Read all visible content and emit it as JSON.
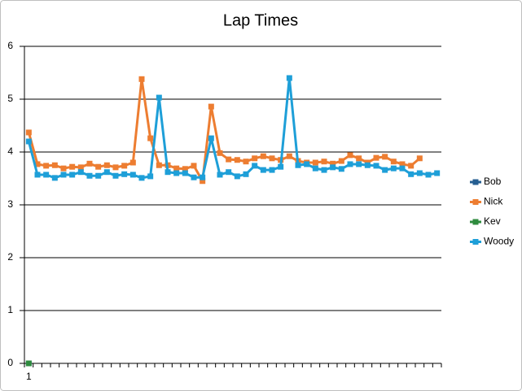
{
  "chart_data": {
    "type": "line",
    "title": "Lap Times",
    "categories": [
      "1",
      null,
      null,
      null,
      null,
      null,
      null,
      null,
      null,
      null,
      null,
      null,
      null,
      null,
      null,
      null,
      null,
      null,
      null,
      null,
      null,
      null,
      null,
      null,
      null,
      null,
      null,
      null,
      null,
      null,
      null,
      null,
      null,
      null,
      null,
      null,
      null,
      null,
      null,
      null,
      null,
      null,
      null,
      null,
      null,
      null,
      null,
      null
    ],
    "series": [
      {
        "name": "Bob",
        "color": "#255e91",
        "values": [
          0,
          null,
          null,
          null,
          null,
          null,
          null,
          null,
          null,
          null,
          null,
          null,
          null,
          null,
          null,
          null,
          null,
          null,
          null,
          null,
          null,
          null,
          null,
          null,
          null,
          null,
          null,
          null,
          null,
          null,
          null,
          null,
          null,
          null,
          null,
          null,
          null,
          null,
          null,
          null,
          null,
          null,
          null,
          null,
          null,
          null,
          null,
          null
        ]
      },
      {
        "name": "Nick",
        "color": "#ed7d31",
        "values": [
          4.37,
          3.77,
          3.74,
          3.75,
          3.69,
          3.72,
          3.71,
          3.78,
          3.72,
          3.75,
          3.71,
          3.74,
          3.8,
          5.38,
          4.26,
          3.75,
          3.75,
          3.69,
          3.68,
          3.74,
          3.45,
          4.86,
          3.98,
          3.86,
          3.85,
          3.82,
          3.88,
          3.92,
          3.88,
          3.85,
          3.92,
          3.83,
          3.8,
          3.8,
          3.82,
          3.78,
          3.83,
          3.94,
          3.88,
          3.8,
          3.89,
          3.91,
          3.82,
          3.77,
          3.74,
          3.88,
          null,
          null
        ]
      },
      {
        "name": "Kev",
        "color": "#2e8b3e",
        "values": [
          0,
          null,
          null,
          null,
          null,
          null,
          null,
          null,
          null,
          null,
          null,
          null,
          null,
          null,
          null,
          null,
          null,
          null,
          null,
          null,
          null,
          null,
          null,
          null,
          null,
          null,
          null,
          null,
          null,
          null,
          null,
          null,
          null,
          null,
          null,
          null,
          null,
          null,
          null,
          null,
          null,
          null,
          null,
          null,
          null,
          null,
          null,
          null
        ]
      },
      {
        "name": "Woody",
        "color": "#1e9fd8",
        "values": [
          4.2,
          3.57,
          3.57,
          3.51,
          3.57,
          3.57,
          3.62,
          3.55,
          3.55,
          3.62,
          3.55,
          3.58,
          3.57,
          3.51,
          3.54,
          5.03,
          3.62,
          3.6,
          3.6,
          3.52,
          3.52,
          4.26,
          3.57,
          3.62,
          3.54,
          3.58,
          3.74,
          3.66,
          3.66,
          3.72,
          5.4,
          3.75,
          3.77,
          3.69,
          3.66,
          3.71,
          3.68,
          3.77,
          3.77,
          3.75,
          3.74,
          3.66,
          3.69,
          3.69,
          3.58,
          3.6,
          3.57,
          3.6
        ]
      }
    ],
    "ylim": [
      0,
      6
    ],
    "yticks": [
      0,
      1,
      2,
      3,
      4,
      5,
      6
    ],
    "grid": true,
    "legend": "right"
  }
}
